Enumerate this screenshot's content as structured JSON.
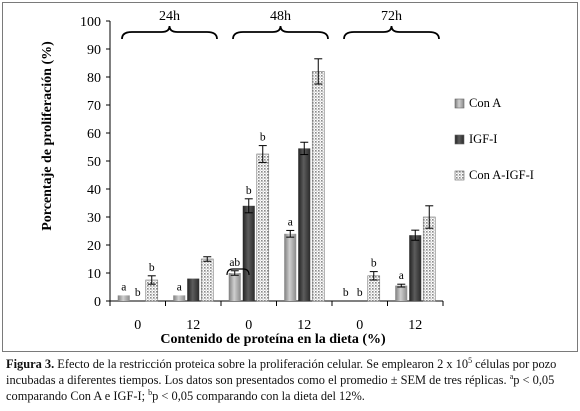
{
  "chart_data": {
    "type": "bar",
    "ylabel": "Porcentaje de proliferación (%)",
    "xlabel": "Contenido de proteína en la dieta (%)",
    "ylim": [
      0,
      100
    ],
    "yticks": [
      0,
      10,
      20,
      30,
      40,
      50,
      60,
      70,
      80,
      90,
      100
    ],
    "grid": false,
    "legend_position": "right",
    "categories": [
      "0",
      "12",
      "0",
      "12",
      "0",
      "12"
    ],
    "time_groups": [
      {
        "label": "24h",
        "categories": [
          0,
          1
        ]
      },
      {
        "label": "48h",
        "categories": [
          2,
          3
        ]
      },
      {
        "label": "72h",
        "categories": [
          4,
          5
        ]
      }
    ],
    "series": [
      {
        "name": "Con A",
        "pattern": "solid-light",
        "values": [
          2,
          2,
          10,
          24,
          0,
          5.5
        ],
        "errors": [
          0,
          0,
          0.8,
          1.2,
          0,
          0.5
        ],
        "letters": [
          "a",
          "a",
          "ab",
          "a",
          "b",
          "a"
        ]
      },
      {
        "name": "IGF-I",
        "pattern": "solid-dark",
        "values": [
          0,
          8,
          34,
          54.5,
          0,
          23.5
        ],
        "errors": [
          0,
          0,
          2.5,
          2.2,
          0,
          1.8
        ],
        "letters": [
          "b",
          "",
          "b",
          "",
          "b",
          ""
        ]
      },
      {
        "name": "Con A-IGF-I",
        "pattern": "dotted",
        "values": [
          7.5,
          15,
          52.5,
          82,
          9,
          30
        ],
        "errors": [
          1.5,
          0.8,
          3,
          4.5,
          1.5,
          4
        ],
        "letters": [
          "b",
          "",
          "b",
          "",
          "b",
          ""
        ]
      }
    ],
    "colors": {
      "con_a": "#9a9a9a",
      "igf": "#3a3a3a",
      "combo_dot": "#8a8a8a",
      "axis": "#000000"
    }
  },
  "caption": {
    "figure_label": "Figura 3.",
    "text_before_sup": " Efecto de la restricción proteica sobre la proliferación celular. Se emplearon 2 x 10",
    "exponent": "5",
    "text_after_sup": " células por pozo incubadas a diferentes tiempos. Los datos son presentados como el promedio ± SEM de tres réplicas. ",
    "note_a_sup": "a",
    "note_a": "p < 0,05 comparando Con A e IGF-I; ",
    "note_b_sup": "b",
    "note_b": "p < 0,05 comparando con  la dieta del 12%."
  }
}
